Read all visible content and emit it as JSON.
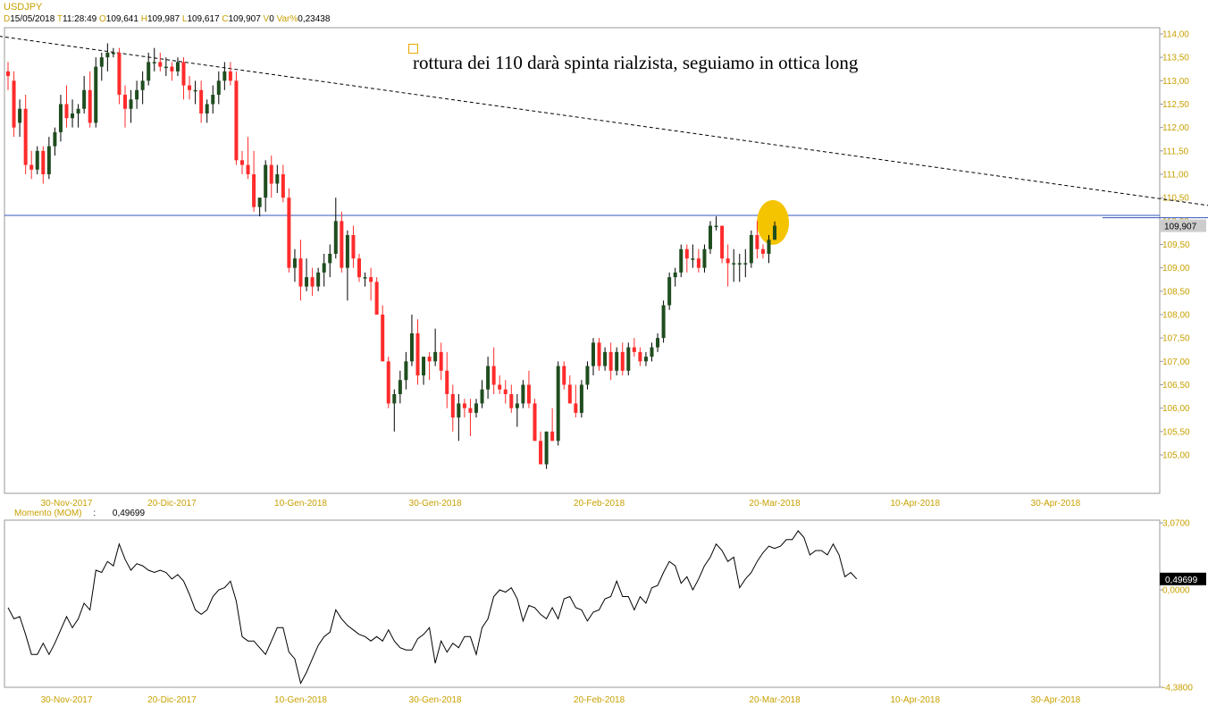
{
  "header": {
    "symbol": "USDJPY",
    "fields": [
      {
        "key": "D",
        "value": "15/05/2018"
      },
      {
        "key": "T",
        "value": "11:28:49"
      },
      {
        "key": "O",
        "value": "109,641"
      },
      {
        "key": "H",
        "value": "109,987"
      },
      {
        "key": "L",
        "value": "109,617"
      },
      {
        "key": "C",
        "value": "109,907"
      },
      {
        "key": "V",
        "value": "0"
      },
      {
        "key": "Var%",
        "value": "0,23438"
      }
    ]
  },
  "annotation": "rottura dei 110 darà spinta rialzista, seguiamo in ottica long",
  "momentum": {
    "label": "Momento (MOM)",
    "sep": ":",
    "value": "0,49699",
    "axis_top": "3,0700",
    "axis_mid": "0,0000",
    "axis_bottom": "-4,3800",
    "current_badge": "0,49699"
  },
  "price_badge": "109,907",
  "colors": {
    "up": "#1f4d1f",
    "down": "#ff2b2b",
    "accent": "#c8a000",
    "hline": "#3355bb",
    "highlight": "#f5c400"
  },
  "chart_data": [
    {
      "type": "candlestick",
      "title": "USDJPY",
      "ylim": [
        104.55,
        114.15
      ],
      "y_ticks": [
        "114,00",
        "113,50",
        "113,00",
        "112,50",
        "112,00",
        "111,50",
        "111,00",
        "110,50",
        "110,00",
        "109,50",
        "109,00",
        "108,50",
        "108,00",
        "107,50",
        "107,00",
        "106,50",
        "106,00",
        "105,50",
        "105,00"
      ],
      "y_tick_values": [
        114.0,
        113.5,
        113.0,
        112.5,
        112.0,
        111.5,
        111.0,
        110.5,
        110.0,
        109.5,
        109.0,
        108.5,
        108.0,
        107.5,
        107.0,
        106.5,
        106.0,
        105.5,
        105.0
      ],
      "x_labels": [
        "30-Nov-2017",
        "20-Dic-2017",
        "10-Gen-2018",
        "30-Gen-2018",
        "20-Feb-2018",
        "20-Mar-2018",
        "10-Apr-2018",
        "30-Apr-2018"
      ],
      "x_label_bar_index": [
        10,
        28,
        50,
        73,
        101,
        131,
        155,
        179
      ],
      "horizontal_line": 110.12,
      "resistance_line": [
        [
          187,
          110.07
        ],
        [
          227,
          110.07
        ]
      ],
      "trendline": [
        [
          -10,
          114.1
        ],
        [
          247,
          109.6
        ]
      ],
      "ohlc": [
        [
          113.2,
          113.4,
          112.8,
          113.1
        ],
        [
          113.0,
          113.2,
          111.8,
          112.0
        ],
        [
          112.1,
          112.6,
          111.8,
          112.4
        ],
        [
          112.4,
          112.7,
          111.0,
          111.2
        ],
        [
          111.2,
          111.5,
          110.9,
          111.1
        ],
        [
          111.1,
          111.6,
          111.0,
          111.5
        ],
        [
          111.5,
          111.6,
          110.8,
          111.0
        ],
        [
          111.0,
          111.8,
          110.9,
          111.6
        ],
        [
          111.6,
          112.0,
          111.4,
          111.9
        ],
        [
          111.9,
          112.7,
          111.7,
          112.5
        ],
        [
          112.5,
          112.9,
          112.0,
          112.2
        ],
        [
          112.2,
          112.6,
          112.0,
          112.3
        ],
        [
          112.3,
          112.5,
          112.0,
          112.4
        ],
        [
          112.4,
          113.1,
          112.3,
          112.8
        ],
        [
          112.8,
          113.2,
          112.0,
          112.1
        ],
        [
          112.1,
          113.5,
          112.0,
          113.3
        ],
        [
          113.3,
          113.6,
          113.0,
          113.5
        ],
        [
          113.5,
          113.8,
          113.2,
          113.6
        ],
        [
          113.6,
          113.7,
          113.5,
          113.6
        ],
        [
          113.6,
          113.7,
          112.5,
          112.7
        ],
        [
          112.7,
          112.9,
          112.0,
          112.4
        ],
        [
          112.4,
          112.8,
          112.1,
          112.6
        ],
        [
          112.6,
          113.0,
          112.4,
          112.8
        ],
        [
          112.8,
          113.2,
          112.5,
          113.0
        ],
        [
          113.0,
          113.6,
          112.9,
          113.4
        ],
        [
          113.4,
          113.7,
          113.2,
          113.4
        ],
        [
          113.4,
          113.6,
          113.2,
          113.3
        ],
        [
          113.3,
          113.5,
          113.1,
          113.3
        ],
        [
          113.3,
          113.4,
          113.0,
          113.2
        ],
        [
          113.2,
          113.5,
          113.1,
          113.4
        ],
        [
          113.4,
          113.5,
          112.6,
          112.9
        ],
        [
          112.9,
          113.1,
          112.6,
          112.8
        ],
        [
          112.8,
          113.0,
          112.5,
          112.8
        ],
        [
          112.8,
          113.0,
          112.1,
          112.3
        ],
        [
          112.3,
          112.6,
          112.1,
          112.5
        ],
        [
          112.5,
          112.9,
          112.3,
          112.7
        ],
        [
          112.7,
          113.2,
          112.5,
          113.0
        ],
        [
          113.0,
          113.4,
          112.8,
          113.2
        ],
        [
          113.2,
          113.4,
          112.9,
          113.0
        ],
        [
          113.0,
          113.2,
          111.2,
          111.3
        ],
        [
          111.3,
          111.5,
          111.0,
          111.2
        ],
        [
          111.2,
          111.8,
          110.9,
          111.0
        ],
        [
          111.0,
          111.5,
          110.2,
          110.3
        ],
        [
          110.3,
          110.5,
          110.1,
          110.5
        ],
        [
          110.5,
          111.3,
          110.2,
          111.2
        ],
        [
          111.2,
          111.4,
          110.5,
          110.8
        ],
        [
          110.8,
          111.2,
          110.6,
          111.0
        ],
        [
          111.0,
          111.2,
          110.4,
          110.5
        ],
        [
          110.5,
          110.7,
          108.9,
          109.0
        ],
        [
          109.0,
          109.4,
          108.7,
          109.2
        ],
        [
          109.2,
          109.6,
          108.3,
          108.6
        ],
        [
          108.6,
          109.2,
          108.5,
          108.8
        ],
        [
          108.8,
          109.0,
          108.4,
          108.6
        ],
        [
          108.6,
          109.0,
          108.5,
          108.9
        ],
        [
          108.9,
          109.3,
          108.6,
          109.1
        ],
        [
          109.1,
          109.5,
          108.8,
          109.3
        ],
        [
          109.3,
          110.5,
          109.2,
          110.0
        ],
        [
          110.0,
          110.2,
          108.9,
          109.0
        ],
        [
          109.0,
          109.8,
          108.3,
          109.7
        ],
        [
          109.7,
          109.9,
          109.0,
          109.2
        ],
        [
          109.2,
          109.3,
          108.7,
          108.8
        ],
        [
          108.8,
          108.9,
          108.6,
          108.8
        ],
        [
          108.8,
          109.0,
          108.3,
          108.7
        ],
        [
          108.7,
          108.8,
          108.0,
          108.0
        ],
        [
          108.0,
          108.2,
          107.0,
          107.0
        ],
        [
          107.0,
          107.1,
          106.0,
          106.1
        ],
        [
          106.1,
          106.4,
          105.5,
          106.3
        ],
        [
          106.3,
          106.8,
          106.1,
          106.6
        ],
        [
          106.6,
          107.2,
          106.4,
          107.0
        ],
        [
          107.0,
          108.0,
          106.9,
          107.6
        ],
        [
          107.6,
          107.9,
          106.5,
          106.7
        ],
        [
          106.7,
          107.1,
          106.5,
          107.1
        ],
        [
          107.1,
          107.2,
          106.6,
          107.0
        ],
        [
          107.0,
          107.7,
          106.9,
          107.2
        ],
        [
          107.2,
          107.4,
          106.6,
          106.8
        ],
        [
          106.8,
          107.2,
          106.0,
          106.3
        ],
        [
          106.3,
          106.5,
          105.5,
          105.8
        ],
        [
          105.8,
          106.3,
          105.3,
          106.1
        ],
        [
          106.1,
          106.2,
          105.8,
          106.0
        ],
        [
          106.0,
          106.2,
          105.4,
          105.9
        ],
        [
          105.9,
          106.2,
          105.8,
          106.1
        ],
        [
          106.1,
          106.6,
          106.0,
          106.4
        ],
        [
          106.4,
          107.1,
          106.2,
          106.9
        ],
        [
          106.9,
          107.3,
          106.3,
          106.5
        ],
        [
          106.5,
          106.7,
          106.3,
          106.4
        ],
        [
          106.4,
          106.6,
          106.1,
          106.3
        ],
        [
          106.3,
          106.5,
          105.9,
          106.0
        ],
        [
          106.0,
          106.3,
          105.6,
          106.1
        ],
        [
          106.1,
          106.6,
          106.0,
          106.5
        ],
        [
          106.5,
          106.8,
          106.0,
          106.1
        ],
        [
          106.1,
          106.2,
          105.3,
          105.3
        ],
        [
          105.3,
          105.5,
          104.8,
          104.8
        ],
        [
          104.8,
          105.5,
          104.7,
          105.5
        ],
        [
          105.5,
          106.0,
          105.3,
          105.3
        ],
        [
          105.3,
          107.0,
          105.2,
          106.9
        ],
        [
          106.9,
          107.0,
          106.4,
          106.5
        ],
        [
          106.5,
          106.7,
          106.1,
          106.1
        ],
        [
          106.1,
          106.5,
          105.8,
          105.9
        ],
        [
          105.9,
          106.6,
          105.8,
          106.5
        ],
        [
          106.5,
          107.0,
          106.4,
          106.9
        ],
        [
          106.9,
          107.5,
          106.7,
          107.4
        ],
        [
          107.4,
          107.5,
          106.8,
          106.9
        ],
        [
          106.9,
          107.3,
          106.8,
          107.2
        ],
        [
          107.2,
          107.4,
          106.6,
          106.8
        ],
        [
          106.8,
          107.3,
          106.7,
          107.2
        ],
        [
          107.2,
          107.4,
          106.7,
          106.8
        ],
        [
          106.8,
          107.4,
          106.7,
          107.3
        ],
        [
          107.3,
          107.5,
          107.1,
          107.2
        ],
        [
          107.2,
          107.3,
          106.9,
          107.0
        ],
        [
          107.0,
          107.2,
          106.9,
          107.1
        ],
        [
          107.1,
          107.4,
          107.0,
          107.3
        ],
        [
          107.3,
          107.6,
          107.2,
          107.5
        ],
        [
          107.5,
          108.3,
          107.4,
          108.2
        ],
        [
          108.2,
          108.9,
          108.1,
          108.8
        ],
        [
          108.8,
          109.0,
          108.6,
          108.9
        ],
        [
          108.9,
          109.5,
          108.8,
          109.4
        ],
        [
          109.4,
          109.5,
          108.9,
          109.2
        ],
        [
          109.2,
          109.5,
          109.0,
          109.2
        ],
        [
          109.2,
          109.4,
          108.9,
          109.0
        ],
        [
          109.0,
          109.5,
          108.9,
          109.4
        ],
        [
          109.4,
          110.0,
          109.3,
          109.9
        ],
        [
          109.9,
          110.1,
          109.8,
          109.9
        ],
        [
          109.9,
          109.9,
          109.1,
          109.2
        ],
        [
          109.2,
          109.5,
          108.6,
          109.1
        ],
        [
          109.1,
          109.4,
          108.7,
          109.1
        ],
        [
          109.1,
          109.3,
          108.7,
          109.1
        ],
        [
          109.1,
          109.4,
          108.8,
          109.1
        ],
        [
          109.1,
          109.8,
          109.0,
          109.7
        ],
        [
          109.7,
          110.0,
          109.2,
          109.4
        ],
        [
          109.4,
          109.5,
          109.2,
          109.3
        ],
        [
          109.3,
          109.7,
          109.1,
          109.6
        ],
        [
          109.6,
          109.99,
          109.6,
          109.9
        ]
      ]
    },
    {
      "type": "line",
      "title": "Momento (MOM)",
      "ylim": [
        -4.38,
        3.07
      ],
      "y_ticks": [
        "3,0700",
        "0,0000",
        "-4,3800"
      ],
      "y_tick_values": [
        3.07,
        0.0,
        -4.38
      ],
      "x_labels": [
        "30-Nov-2017",
        "20-Dic-2017",
        "10-Gen-2018",
        "30-Gen-2018",
        "20-Feb-2018",
        "20-Mar-2018",
        "10-Apr-2018",
        "30-Apr-2018"
      ],
      "values": [
        -0.8,
        -1.3,
        -1.2,
        -2.0,
        -2.9,
        -2.9,
        -2.4,
        -2.9,
        -2.4,
        -1.8,
        -1.2,
        -1.7,
        -1.3,
        -0.6,
        -0.9,
        0.9,
        0.8,
        1.3,
        1.1,
        2.1,
        1.4,
        0.9,
        1.2,
        1.1,
        0.9,
        0.8,
        0.9,
        0.8,
        0.5,
        0.7,
        0.4,
        -0.2,
        -0.9,
        -1.1,
        -0.9,
        -0.3,
        0.0,
        0.1,
        0.4,
        -0.5,
        -2.1,
        -2.3,
        -2.3,
        -2.6,
        -2.9,
        -2.3,
        -1.7,
        -1.7,
        -2.8,
        -3.1,
        -4.2,
        -3.7,
        -3.1,
        -2.5,
        -2.1,
        -1.9,
        -0.9,
        -1.3,
        -1.6,
        -1.8,
        -2.0,
        -2.1,
        -2.3,
        -2.1,
        -2.3,
        -1.8,
        -2.3,
        -2.6,
        -2.7,
        -2.7,
        -2.2,
        -2.0,
        -1.7,
        -3.3,
        -2.3,
        -2.8,
        -2.4,
        -2.6,
        -2.1,
        -2.1,
        -2.9,
        -1.7,
        -1.3,
        -0.3,
        0.0,
        -0.1,
        0.1,
        -0.4,
        -1.4,
        -0.7,
        -0.8,
        -1.1,
        -1.3,
        -0.8,
        -1.3,
        -0.4,
        -0.3,
        -0.8,
        -0.9,
        -1.4,
        -1.0,
        -0.9,
        -0.4,
        -0.3,
        0.4,
        -0.3,
        -0.3,
        -0.9,
        -0.3,
        -0.6,
        0.1,
        0.2,
        0.8,
        1.3,
        1.1,
        0.3,
        0.6,
        0.0,
        0.5,
        1.1,
        1.5,
        2.1,
        1.8,
        1.3,
        1.5,
        0.1,
        0.5,
        0.8,
        1.3,
        1.7,
        2.0,
        1.9,
        2.0,
        2.3,
        2.3,
        2.7,
        2.4,
        1.6,
        1.8,
        1.8,
        1.6,
        2.1,
        1.6,
        0.6,
        0.8,
        0.5
      ]
    }
  ]
}
